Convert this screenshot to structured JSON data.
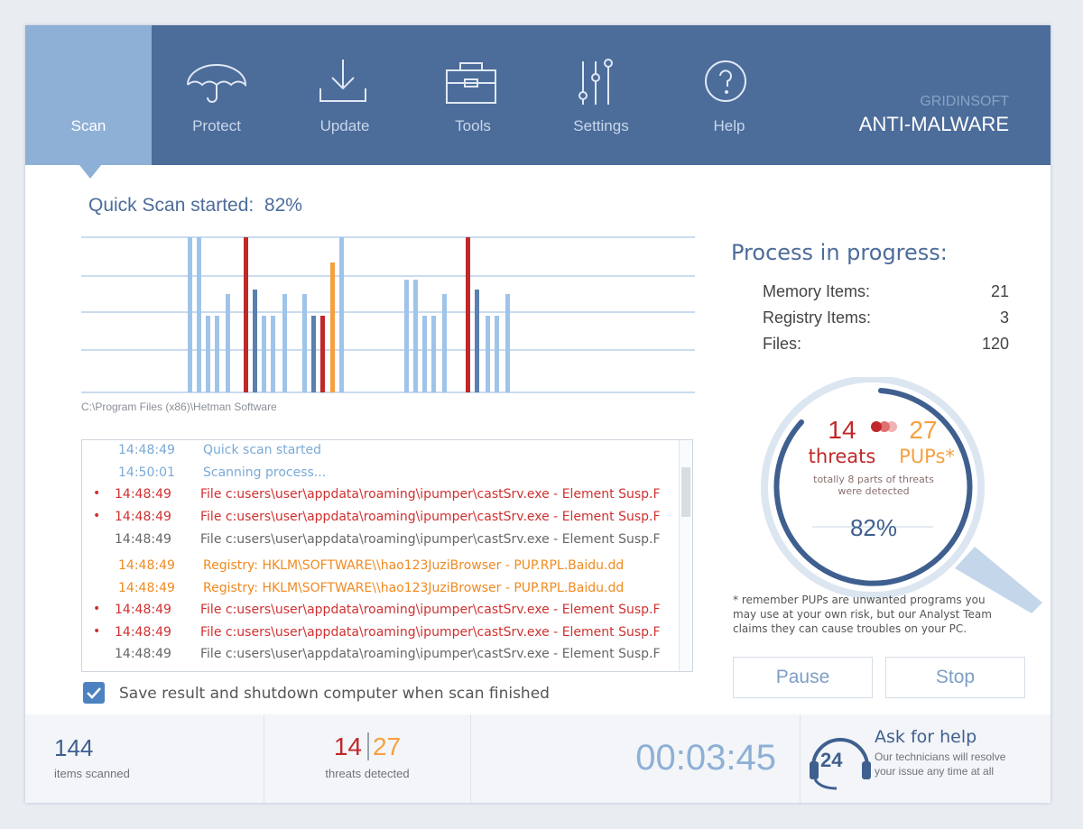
{
  "nav": {
    "tabs": [
      "Scan",
      "Protect",
      "Update",
      "Tools",
      "Settings",
      "Help"
    ],
    "active_tab": 0,
    "brand": {
      "company": "GRIDINSOFT",
      "product": "ANTI-MALWARE"
    }
  },
  "scan": {
    "status_label": "Quick Scan started:",
    "status_percent": "82%",
    "current_path": "C:\\Program Files (x86)\\Hetman Software"
  },
  "log": [
    {
      "time": "14:48:49",
      "message": "Quick scan started",
      "level": "info"
    },
    {
      "time": "14:50:01",
      "message": "Scanning process...",
      "level": "info"
    },
    {
      "time": "14:48:49",
      "message": "File c:users\\user\\appdata\\roaming\\ipumper\\castSrv.exe - Element Susp.F",
      "level": "threat"
    },
    {
      "time": "14:48:49",
      "message": "File c:users\\user\\appdata\\roaming\\ipumper\\castSrv.exe - Element Susp.F",
      "level": "threat"
    },
    {
      "time": "14:48:49",
      "message": "File c:users\\user\\appdata\\roaming\\ipumper\\castSrv.exe - Element Susp.F",
      "level": "normal"
    },
    {
      "time": "14:48:49",
      "message": "Registry: HKLM\\SOFTWARE\\\\hao123JuziBrowser - PUP.RPL.Baidu.dd",
      "level": "pup"
    },
    {
      "time": "14:48:49",
      "message": "Registry: HKLM\\SOFTWARE\\\\hao123JuziBrowser - PUP.RPL.Baidu.dd",
      "level": "pup"
    },
    {
      "time": "14:48:49",
      "message": "File c:users\\user\\appdata\\roaming\\ipumper\\castSrv.exe - Element Susp.F",
      "level": "threat"
    },
    {
      "time": "14:48:49",
      "message": "File c:users\\user\\appdata\\roaming\\ipumper\\castSrv.exe - Element Susp.F",
      "level": "threat"
    },
    {
      "time": "14:48:49",
      "message": "File c:users\\user\\appdata\\roaming\\ipumper\\castSrv.exe - Element Susp.F",
      "level": "normal"
    }
  ],
  "checkbox": {
    "label": "Save result and shutdown computer when scan finished",
    "checked": true
  },
  "process": {
    "title": "Process in progress:",
    "items": [
      {
        "label": "Memory Items:",
        "value": 21
      },
      {
        "label": "Registry Items:",
        "value": 3
      },
      {
        "label": "Files:",
        "value": 120
      }
    ]
  },
  "summary": {
    "threats": 14,
    "threats_label": "threats",
    "pups": 27,
    "pups_label": "PUPs*",
    "note_line1": "totally 8 parts of threats",
    "note_line2": "were detected",
    "percent": "82%"
  },
  "footnote": [
    "* remember PUPs are unwanted programs you",
    "may use at your own risk, but our Analyst Team",
    "claims they can cause troubles on your PC."
  ],
  "buttons": [
    "Pause",
    "Stop"
  ],
  "footer": {
    "items_scanned": 144,
    "items_label": "items scanned",
    "threats": 14,
    "pups": 27,
    "threats_label": "threats detected",
    "elapsed": "00:03:45",
    "help_badge": "24",
    "help_title": "Ask for help",
    "help_line1": "Our technicians will resolve",
    "help_line2": "your issue any time at all"
  }
}
